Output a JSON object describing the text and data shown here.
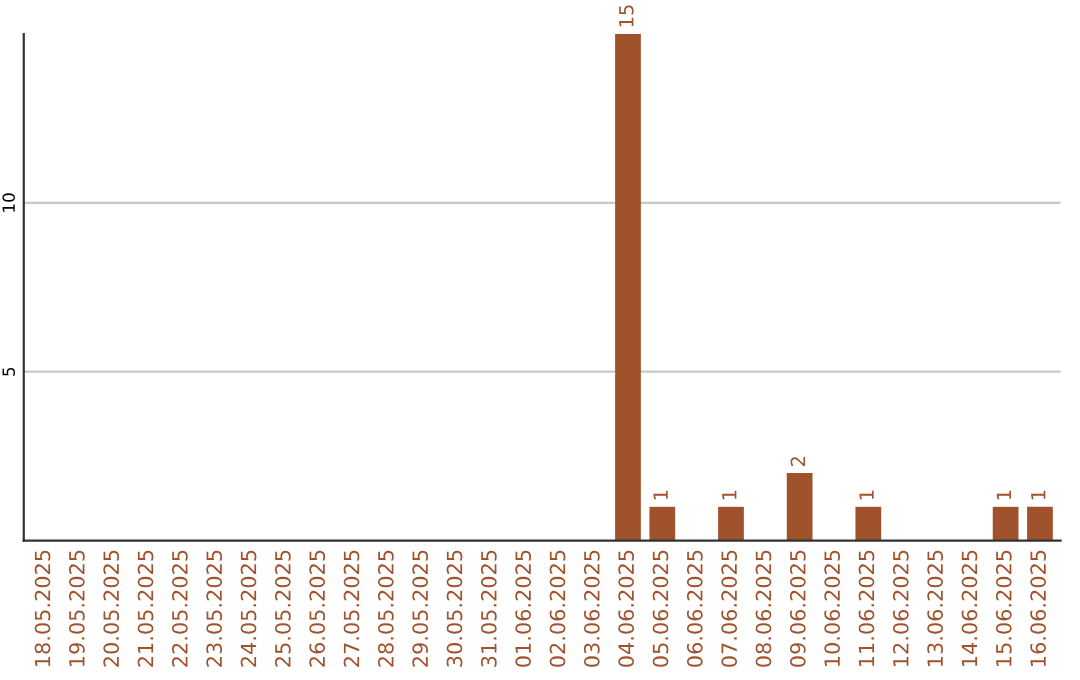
{
  "chart_data": {
    "type": "bar",
    "categories": [
      "18.05.2025",
      "19.05.2025",
      "20.05.2025",
      "21.05.2025",
      "22.05.2025",
      "23.05.2025",
      "24.05.2025",
      "25.05.2025",
      "26.05.2025",
      "27.05.2025",
      "28.05.2025",
      "29.05.2025",
      "30.05.2025",
      "31.05.2025",
      "01.06.2025",
      "02.06.2025",
      "03.06.2025",
      "04.06.2025",
      "05.06.2025",
      "06.06.2025",
      "07.06.2025",
      "08.06.2025",
      "09.06.2025",
      "10.06.2025",
      "11.06.2025",
      "12.06.2025",
      "13.06.2025",
      "14.06.2025",
      "15.06.2025",
      "16.06.2025"
    ],
    "values": [
      0,
      0,
      0,
      0,
      0,
      0,
      0,
      0,
      0,
      0,
      0,
      0,
      0,
      0,
      0,
      0,
      0,
      15,
      1,
      0,
      1,
      0,
      2,
      0,
      1,
      0,
      0,
      0,
      1,
      1
    ],
    "value_labels": [
      null,
      null,
      null,
      null,
      null,
      null,
      null,
      null,
      null,
      null,
      null,
      null,
      null,
      null,
      null,
      null,
      null,
      "15",
      "1",
      null,
      "1",
      null,
      "2",
      null,
      "1",
      null,
      null,
      null,
      "1",
      "1"
    ],
    "color": "#a0522d",
    "ylim": [
      0,
      15
    ],
    "yticks": [
      5,
      10
    ],
    "grid": "y"
  }
}
